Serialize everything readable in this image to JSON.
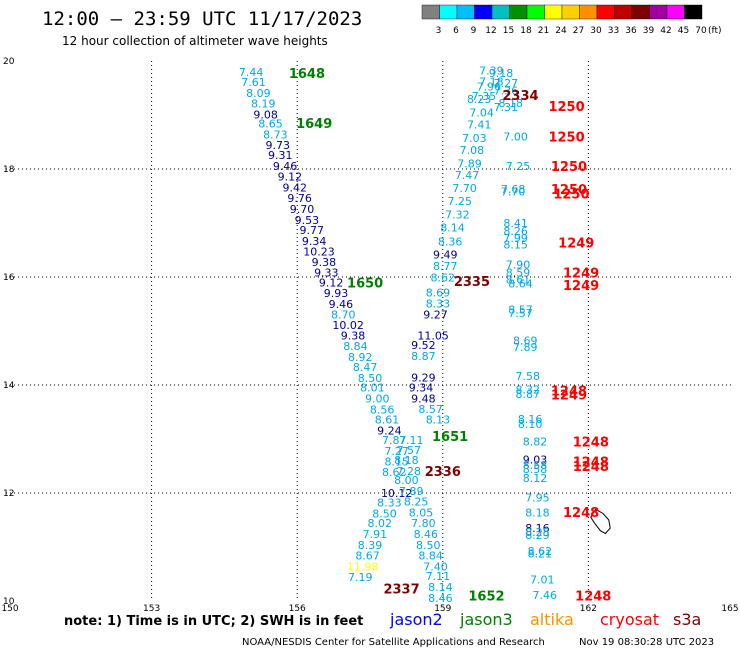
{
  "header": {
    "title": "12:00 – 23:59 UTC 11/17/2023",
    "subtitle": "12 hour collection of altimeter wave heights",
    "scale_values": [
      "3",
      "6",
      "9",
      "12",
      "15",
      "18",
      "21",
      "24",
      "27",
      "30",
      "33",
      "36",
      "39",
      "42",
      "45",
      "70"
    ],
    "scale_unit": "(ft)",
    "scale_colors": [
      "#808080",
      "#00ffff",
      "#00bfff",
      "#0000ff",
      "#00c0c0",
      "#009000",
      "#00ff00",
      "#ffff00",
      "#ffd000",
      "#ff9000",
      "#ff0000",
      "#c00000",
      "#800000",
      "#a000a0",
      "#ff00ff",
      "#000000"
    ]
  },
  "footer": {
    "note": "note: 1) Time is in UTC; 2) SWH is in feet",
    "satellites": [
      {
        "name": "jason2",
        "color": "#0000ff"
      },
      {
        "name": "jason3",
        "color": "#008000"
      },
      {
        "name": "altika",
        "color": "#ff9000"
      },
      {
        "name": "cryosat",
        "color": "#ff0000"
      },
      {
        "name": "s3a",
        "color": "#800000"
      }
    ],
    "credit": "NOAA/NESDIS Center for Satellite Applications and Research",
    "timestamp": "Nov 19 08:30:28 UTC 2023"
  },
  "chart_data": {
    "type": "scatter",
    "xlim": [
      150,
      165
    ],
    "ylim": [
      10,
      20
    ],
    "x_ticks": [
      "150",
      "153",
      "156",
      "159",
      "162",
      "165"
    ],
    "y_ticks": [
      "10",
      "12",
      "14",
      "16",
      "18",
      "20"
    ],
    "grid": true,
    "colors": {
      "light": "#00a8e8",
      "dark": "#000090",
      "yellow": "#ffff00",
      "jason3": "#008000",
      "cryosat": "#ff0000",
      "s3a": "#800000"
    },
    "points": [
      {
        "x": 155.05,
        "y": 19.8,
        "t": "7.44",
        "c": "light"
      },
      {
        "x": 155.1,
        "y": 19.61,
        "t": "7.61",
        "c": "light"
      },
      {
        "x": 155.2,
        "y": 19.41,
        "t": "8.09",
        "c": "light"
      },
      {
        "x": 155.3,
        "y": 19.21,
        "t": "8.19",
        "c": "light"
      },
      {
        "x": 155.35,
        "y": 19.01,
        "t": "9.08",
        "c": "dark"
      },
      {
        "x": 155.45,
        "y": 18.84,
        "t": "8.65",
        "c": "light"
      },
      {
        "x": 155.55,
        "y": 18.64,
        "t": "8.73",
        "c": "light"
      },
      {
        "x": 155.6,
        "y": 18.44,
        "t": "9.73",
        "c": "dark"
      },
      {
        "x": 155.65,
        "y": 18.26,
        "t": "9.31",
        "c": "dark"
      },
      {
        "x": 155.75,
        "y": 18.06,
        "t": "9.46",
        "c": "dark"
      },
      {
        "x": 155.85,
        "y": 17.86,
        "t": "9.12",
        "c": "dark"
      },
      {
        "x": 155.95,
        "y": 17.66,
        "t": "9.42",
        "c": "dark"
      },
      {
        "x": 156.05,
        "y": 17.46,
        "t": "9.76",
        "c": "dark"
      },
      {
        "x": 156.1,
        "y": 17.26,
        "t": "9.70",
        "c": "dark"
      },
      {
        "x": 156.2,
        "y": 17.06,
        "t": "9.53",
        "c": "dark"
      },
      {
        "x": 156.3,
        "y": 16.87,
        "t": "9.77",
        "c": "dark"
      },
      {
        "x": 156.35,
        "y": 16.67,
        "t": "9.34",
        "c": "dark"
      },
      {
        "x": 156.45,
        "y": 16.47,
        "t": "10.23",
        "c": "dark"
      },
      {
        "x": 156.55,
        "y": 16.28,
        "t": "9.38",
        "c": "dark"
      },
      {
        "x": 156.6,
        "y": 16.08,
        "t": "9.33",
        "c": "dark"
      },
      {
        "x": 156.7,
        "y": 15.9,
        "t": "9.12",
        "c": "dark"
      },
      {
        "x": 156.8,
        "y": 15.7,
        "t": "9.93",
        "c": "dark"
      },
      {
        "x": 156.9,
        "y": 15.5,
        "t": "9.46",
        "c": "dark"
      },
      {
        "x": 156.95,
        "y": 15.31,
        "t": "8.70",
        "c": "light"
      },
      {
        "x": 157.05,
        "y": 15.11,
        "t": "10.02",
        "c": "dark"
      },
      {
        "x": 157.15,
        "y": 14.92,
        "t": "9.38",
        "c": "dark"
      },
      {
        "x": 157.2,
        "y": 14.72,
        "t": "8.84",
        "c": "light"
      },
      {
        "x": 157.3,
        "y": 14.52,
        "t": "8.92",
        "c": "light"
      },
      {
        "x": 157.4,
        "y": 14.33,
        "t": "8.47",
        "c": "light"
      },
      {
        "x": 157.5,
        "y": 14.13,
        "t": "8.50",
        "c": "light"
      },
      {
        "x": 157.55,
        "y": 13.95,
        "t": "8.01",
        "c": "light"
      },
      {
        "x": 157.65,
        "y": 13.75,
        "t": "9.00",
        "c": "light"
      },
      {
        "x": 157.75,
        "y": 13.55,
        "t": "8.56",
        "c": "light"
      },
      {
        "x": 157.85,
        "y": 13.36,
        "t": "8.61",
        "c": "light"
      },
      {
        "x": 157.9,
        "y": 13.16,
        "t": "9.24",
        "c": "dark"
      },
      {
        "x": 158.0,
        "y": 12.98,
        "t": "7.87",
        "c": "light"
      },
      {
        "x": 158.05,
        "y": 12.78,
        "t": "7.27",
        "c": "light"
      },
      {
        "x": 158.05,
        "y": 12.58,
        "t": "8.15",
        "c": "light"
      },
      {
        "x": 158.0,
        "y": 12.39,
        "t": "8.62",
        "c": "light"
      },
      {
        "x": 158.05,
        "y": 12.0,
        "t": "10.12",
        "c": "dark"
      },
      {
        "x": 157.9,
        "y": 11.82,
        "t": "8.33",
        "c": "light"
      },
      {
        "x": 157.8,
        "y": 11.62,
        "t": "8.50",
        "c": "light"
      },
      {
        "x": 157.7,
        "y": 11.44,
        "t": "8.02",
        "c": "light"
      },
      {
        "x": 157.6,
        "y": 11.24,
        "t": "7.91",
        "c": "light"
      },
      {
        "x": 157.5,
        "y": 11.04,
        "t": "8.39",
        "c": "light"
      },
      {
        "x": 157.45,
        "y": 10.84,
        "t": "8.67",
        "c": "light"
      },
      {
        "x": 157.35,
        "y": 10.64,
        "t": "11.98",
        "c": "yellow"
      },
      {
        "x": 157.3,
        "y": 10.44,
        "t": "7.19",
        "c": "light"
      },
      {
        "x": 158.35,
        "y": 12.98,
        "t": "7.11",
        "c": "light"
      },
      {
        "x": 158.3,
        "y": 12.8,
        "t": "7.57",
        "c": "light"
      },
      {
        "x": 158.25,
        "y": 12.61,
        "t": "8.18",
        "c": "light"
      },
      {
        "x": 158.3,
        "y": 12.41,
        "t": "7.28",
        "c": "light"
      },
      {
        "x": 158.25,
        "y": 12.24,
        "t": "8.00",
        "c": "light"
      },
      {
        "x": 158.35,
        "y": 12.04,
        "t": "7.89",
        "c": "light"
      },
      {
        "x": 158.45,
        "y": 11.84,
        "t": "8.25",
        "c": "light"
      },
      {
        "x": 158.55,
        "y": 11.64,
        "t": "8.05",
        "c": "light"
      },
      {
        "x": 158.6,
        "y": 11.44,
        "t": "7.80",
        "c": "light"
      },
      {
        "x": 158.65,
        "y": 11.24,
        "t": "8.46",
        "c": "light"
      },
      {
        "x": 158.7,
        "y": 11.04,
        "t": "8.50",
        "c": "light"
      },
      {
        "x": 158.75,
        "y": 10.84,
        "t": "8.84",
        "c": "light"
      },
      {
        "x": 158.85,
        "y": 10.64,
        "t": "7.40",
        "c": "light"
      },
      {
        "x": 158.9,
        "y": 10.46,
        "t": "7.11",
        "c": "light"
      },
      {
        "x": 158.95,
        "y": 10.26,
        "t": "8.14",
        "c": "light"
      },
      {
        "x": 158.95,
        "y": 10.06,
        "t": "8.46",
        "c": "light"
      },
      {
        "x": 158.9,
        "y": 13.36,
        "t": "8.13",
        "c": "light"
      },
      {
        "x": 158.75,
        "y": 13.56,
        "t": "8.57",
        "c": "light"
      },
      {
        "x": 158.6,
        "y": 13.75,
        "t": "9.48",
        "c": "dark"
      },
      {
        "x": 158.55,
        "y": 13.95,
        "t": "9.34",
        "c": "dark"
      },
      {
        "x": 158.6,
        "y": 14.14,
        "t": "9.29",
        "c": "dark"
      },
      {
        "x": 158.6,
        "y": 14.54,
        "t": "8.87",
        "c": "light"
      },
      {
        "x": 158.6,
        "y": 14.74,
        "t": "9.52",
        "c": "dark"
      },
      {
        "x": 158.8,
        "y": 14.92,
        "t": "11.05",
        "c": "dark"
      },
      {
        "x": 158.85,
        "y": 15.31,
        "t": "9.27",
        "c": "dark"
      },
      {
        "x": 158.9,
        "y": 15.51,
        "t": "8.33",
        "c": "light"
      },
      {
        "x": 158.9,
        "y": 15.71,
        "t": "8.69",
        "c": "light"
      },
      {
        "x": 159.0,
        "y": 15.99,
        "t": "8.62",
        "c": "light"
      },
      {
        "x": 159.05,
        "y": 16.2,
        "t": "8.77",
        "c": "light"
      },
      {
        "x": 159.05,
        "y": 16.42,
        "t": "9.49",
        "c": "dark"
      },
      {
        "x": 159.15,
        "y": 16.66,
        "t": "8.36",
        "c": "light"
      },
      {
        "x": 159.2,
        "y": 16.92,
        "t": "8.14",
        "c": "light"
      },
      {
        "x": 159.3,
        "y": 17.16,
        "t": "7.32",
        "c": "light"
      },
      {
        "x": 159.35,
        "y": 17.41,
        "t": "7.25",
        "c": "light"
      },
      {
        "x": 159.45,
        "y": 17.65,
        "t": "7.70",
        "c": "light"
      },
      {
        "x": 159.5,
        "y": 17.89,
        "t": "7.47",
        "c": "light"
      },
      {
        "x": 159.55,
        "y": 18.1,
        "t": "7.89",
        "c": "light"
      },
      {
        "x": 159.6,
        "y": 18.35,
        "t": "7.08",
        "c": "light"
      },
      {
        "x": 159.65,
        "y": 18.57,
        "t": "7.03",
        "c": "light"
      },
      {
        "x": 159.75,
        "y": 18.82,
        "t": "7.41",
        "c": "light"
      },
      {
        "x": 159.8,
        "y": 19.05,
        "t": "7.04",
        "c": "light"
      },
      {
        "x": 159.75,
        "y": 19.3,
        "t": "8.23",
        "c": "light"
      },
      {
        "x": 159.85,
        "y": 19.35,
        "t": "7.35",
        "c": "light"
      },
      {
        "x": 159.95,
        "y": 19.53,
        "t": "7.96",
        "c": "light"
      },
      {
        "x": 160.0,
        "y": 19.62,
        "t": "7.18",
        "c": "light"
      },
      {
        "x": 160.3,
        "y": 19.59,
        "t": "7.27",
        "c": "light"
      },
      {
        "x": 160.3,
        "y": 19.45,
        "t": "7.36",
        "c": "light"
      },
      {
        "x": 160.2,
        "y": 19.78,
        "t": "9.18",
        "c": "light"
      },
      {
        "x": 160.0,
        "y": 19.82,
        "t": "7.39",
        "c": "light"
      },
      {
        "x": 160.3,
        "y": 19.15,
        "t": "7.31",
        "c": "light"
      },
      {
        "x": 160.4,
        "y": 19.22,
        "t": "8.18",
        "c": "light"
      },
      {
        "x": 160.5,
        "y": 18.6,
        "t": "7.00",
        "c": "light"
      },
      {
        "x": 160.55,
        "y": 18.06,
        "t": "7.25",
        "c": "light"
      },
      {
        "x": 160.45,
        "y": 17.63,
        "t": "7.68",
        "c": "light"
      },
      {
        "x": 160.45,
        "y": 17.58,
        "t": "7.70",
        "c": "light"
      },
      {
        "x": 160.5,
        "y": 17.0,
        "t": "8.41",
        "c": "light"
      },
      {
        "x": 160.5,
        "y": 16.85,
        "t": "8.26",
        "c": "light"
      },
      {
        "x": 160.5,
        "y": 16.72,
        "t": "7.99",
        "c": "light"
      },
      {
        "x": 160.5,
        "y": 16.6,
        "t": "8.15",
        "c": "light"
      },
      {
        "x": 160.55,
        "y": 16.23,
        "t": "7.90",
        "c": "light"
      },
      {
        "x": 160.55,
        "y": 16.08,
        "t": "8.59",
        "c": "light"
      },
      {
        "x": 160.55,
        "y": 15.95,
        "t": "8.61",
        "c": "light"
      },
      {
        "x": 160.6,
        "y": 15.88,
        "t": "8.64",
        "c": "light"
      },
      {
        "x": 160.6,
        "y": 15.4,
        "t": "8.57",
        "c": "light"
      },
      {
        "x": 160.6,
        "y": 15.33,
        "t": "7.57",
        "c": "light"
      },
      {
        "x": 160.7,
        "y": 14.82,
        "t": "8.69",
        "c": "light"
      },
      {
        "x": 160.7,
        "y": 14.7,
        "t": "7.89",
        "c": "light"
      },
      {
        "x": 160.75,
        "y": 14.17,
        "t": "7.58",
        "c": "light"
      },
      {
        "x": 160.75,
        "y": 13.92,
        "t": "8.32",
        "c": "light"
      },
      {
        "x": 160.75,
        "y": 13.83,
        "t": "8.87",
        "c": "light"
      },
      {
        "x": 160.8,
        "y": 13.37,
        "t": "8.16",
        "c": "light"
      },
      {
        "x": 160.8,
        "y": 13.28,
        "t": "8.10",
        "c": "light"
      },
      {
        "x": 160.9,
        "y": 12.95,
        "t": "8.82",
        "c": "light"
      },
      {
        "x": 160.9,
        "y": 12.62,
        "t": "9.03",
        "c": "dark"
      },
      {
        "x": 160.9,
        "y": 12.52,
        "t": "8.58",
        "c": "light"
      },
      {
        "x": 160.9,
        "y": 12.44,
        "t": "8.58",
        "c": "light"
      },
      {
        "x": 160.9,
        "y": 12.28,
        "t": "8.12",
        "c": "light"
      },
      {
        "x": 160.95,
        "y": 11.92,
        "t": "7.95",
        "c": "light"
      },
      {
        "x": 160.95,
        "y": 11.64,
        "t": "8.18",
        "c": "light"
      },
      {
        "x": 160.95,
        "y": 11.35,
        "t": "8.16",
        "c": "dark"
      },
      {
        "x": 160.95,
        "y": 11.28,
        "t": "8.25",
        "c": "light"
      },
      {
        "x": 160.95,
        "y": 11.22,
        "t": "8.29",
        "c": "light"
      },
      {
        "x": 161.0,
        "y": 10.93,
        "t": "8.62",
        "c": "light"
      },
      {
        "x": 161.0,
        "y": 10.88,
        "t": "8.21",
        "c": "light"
      },
      {
        "x": 161.05,
        "y": 10.4,
        "t": "7.01",
        "c": "light"
      },
      {
        "x": 161.1,
        "y": 10.11,
        "t": "7.46",
        "c": "light"
      }
    ],
    "tracks": [
      {
        "x": 156.2,
        "y": 19.78,
        "t": "1648",
        "c": "jason3"
      },
      {
        "x": 156.35,
        "y": 18.85,
        "t": "1649",
        "c": "jason3"
      },
      {
        "x": 157.4,
        "y": 15.9,
        "t": "1650",
        "c": "jason3"
      },
      {
        "x": 159.15,
        "y": 13.06,
        "t": "1651",
        "c": "jason3"
      },
      {
        "x": 159.9,
        "y": 10.1,
        "t": "1652",
        "c": "jason3"
      },
      {
        "x": 160.6,
        "y": 19.37,
        "t": "2334",
        "c": "s3a"
      },
      {
        "x": 159.6,
        "y": 15.93,
        "t": "2335",
        "c": "s3a"
      },
      {
        "x": 159.0,
        "y": 12.41,
        "t": "2336",
        "c": "s3a"
      },
      {
        "x": 158.15,
        "y": 10.23,
        "t": "2337",
        "c": "s3a"
      },
      {
        "x": 161.55,
        "y": 19.17,
        "t": "1250",
        "c": "cryosat"
      },
      {
        "x": 161.55,
        "y": 18.6,
        "t": "1250",
        "c": "cryosat"
      },
      {
        "x": 161.6,
        "y": 18.06,
        "t": "1250",
        "c": "cryosat"
      },
      {
        "x": 161.6,
        "y": 17.63,
        "t": "1250",
        "c": "cryosat"
      },
      {
        "x": 161.65,
        "y": 17.55,
        "t": "1250",
        "c": "cryosat"
      },
      {
        "x": 161.75,
        "y": 16.64,
        "t": "1249",
        "c": "cryosat"
      },
      {
        "x": 161.85,
        "y": 16.08,
        "t": "1249",
        "c": "cryosat"
      },
      {
        "x": 161.85,
        "y": 15.85,
        "t": "1249",
        "c": "cryosat"
      },
      {
        "x": 161.6,
        "y": 13.9,
        "t": "1248",
        "c": "cryosat"
      },
      {
        "x": 161.6,
        "y": 13.82,
        "t": "1249",
        "c": "cryosat"
      },
      {
        "x": 162.05,
        "y": 12.95,
        "t": "1248",
        "c": "cryosat"
      },
      {
        "x": 162.05,
        "y": 12.58,
        "t": "1248",
        "c": "cryosat"
      },
      {
        "x": 162.05,
        "y": 12.5,
        "t": "1248",
        "c": "cryosat"
      },
      {
        "x": 161.85,
        "y": 11.65,
        "t": "1248",
        "c": "cryosat"
      },
      {
        "x": 162.1,
        "y": 10.1,
        "t": "1248",
        "c": "cryosat"
      }
    ],
    "coastline": [
      [
        162.15,
        11.7
      ],
      [
        162.3,
        11.62
      ],
      [
        162.42,
        11.5
      ],
      [
        162.45,
        11.35
      ],
      [
        162.35,
        11.25
      ],
      [
        162.25,
        11.3
      ],
      [
        162.12,
        11.45
      ],
      [
        162.05,
        11.55
      ],
      [
        162.15,
        11.7
      ]
    ]
  }
}
